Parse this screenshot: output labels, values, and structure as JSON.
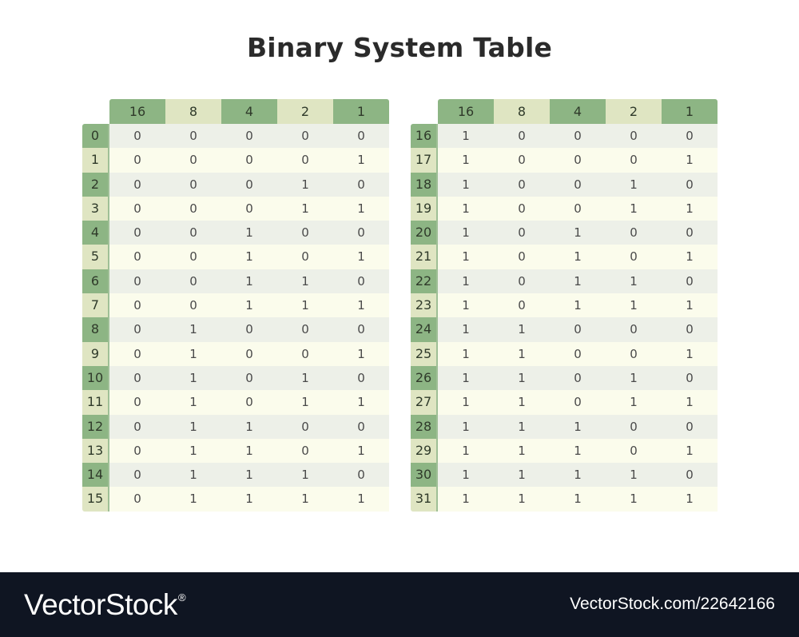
{
  "title": "Binary System Table",
  "headers": [
    "16",
    "8",
    "4",
    "2",
    "1"
  ],
  "tables": [
    {
      "rows": [
        {
          "label": "0",
          "bits": [
            "0",
            "0",
            "0",
            "0",
            "0"
          ]
        },
        {
          "label": "1",
          "bits": [
            "0",
            "0",
            "0",
            "0",
            "1"
          ]
        },
        {
          "label": "2",
          "bits": [
            "0",
            "0",
            "0",
            "1",
            "0"
          ]
        },
        {
          "label": "3",
          "bits": [
            "0",
            "0",
            "0",
            "1",
            "1"
          ]
        },
        {
          "label": "4",
          "bits": [
            "0",
            "0",
            "1",
            "0",
            "0"
          ]
        },
        {
          "label": "5",
          "bits": [
            "0",
            "0",
            "1",
            "0",
            "1"
          ]
        },
        {
          "label": "6",
          "bits": [
            "0",
            "0",
            "1",
            "1",
            "0"
          ]
        },
        {
          "label": "7",
          "bits": [
            "0",
            "0",
            "1",
            "1",
            "1"
          ]
        },
        {
          "label": "8",
          "bits": [
            "0",
            "1",
            "0",
            "0",
            "0"
          ]
        },
        {
          "label": "9",
          "bits": [
            "0",
            "1",
            "0",
            "0",
            "1"
          ]
        },
        {
          "label": "10",
          "bits": [
            "0",
            "1",
            "0",
            "1",
            "0"
          ]
        },
        {
          "label": "11",
          "bits": [
            "0",
            "1",
            "0",
            "1",
            "1"
          ]
        },
        {
          "label": "12",
          "bits": [
            "0",
            "1",
            "1",
            "0",
            "0"
          ]
        },
        {
          "label": "13",
          "bits": [
            "0",
            "1",
            "1",
            "0",
            "1"
          ]
        },
        {
          "label": "14",
          "bits": [
            "0",
            "1",
            "1",
            "1",
            "0"
          ]
        },
        {
          "label": "15",
          "bits": [
            "0",
            "1",
            "1",
            "1",
            "1"
          ]
        }
      ]
    },
    {
      "rows": [
        {
          "label": "16",
          "bits": [
            "1",
            "0",
            "0",
            "0",
            "0"
          ]
        },
        {
          "label": "17",
          "bits": [
            "1",
            "0",
            "0",
            "0",
            "1"
          ]
        },
        {
          "label": "18",
          "bits": [
            "1",
            "0",
            "0",
            "1",
            "0"
          ]
        },
        {
          "label": "19",
          "bits": [
            "1",
            "0",
            "0",
            "1",
            "1"
          ]
        },
        {
          "label": "20",
          "bits": [
            "1",
            "0",
            "1",
            "0",
            "0"
          ]
        },
        {
          "label": "21",
          "bits": [
            "1",
            "0",
            "1",
            "0",
            "1"
          ]
        },
        {
          "label": "22",
          "bits": [
            "1",
            "0",
            "1",
            "1",
            "0"
          ]
        },
        {
          "label": "23",
          "bits": [
            "1",
            "0",
            "1",
            "1",
            "1"
          ]
        },
        {
          "label": "24",
          "bits": [
            "1",
            "1",
            "0",
            "0",
            "0"
          ]
        },
        {
          "label": "25",
          "bits": [
            "1",
            "1",
            "0",
            "0",
            "1"
          ]
        },
        {
          "label": "26",
          "bits": [
            "1",
            "1",
            "0",
            "1",
            "0"
          ]
        },
        {
          "label": "27",
          "bits": [
            "1",
            "1",
            "0",
            "1",
            "1"
          ]
        },
        {
          "label": "28",
          "bits": [
            "1",
            "1",
            "1",
            "0",
            "0"
          ]
        },
        {
          "label": "29",
          "bits": [
            "1",
            "1",
            "1",
            "0",
            "1"
          ]
        },
        {
          "label": "30",
          "bits": [
            "1",
            "1",
            "1",
            "1",
            "0"
          ]
        },
        {
          "label": "31",
          "bits": [
            "1",
            "1",
            "1",
            "1",
            "1"
          ]
        }
      ]
    }
  ],
  "colors": {
    "header_dark": "#8db584",
    "header_light": "#dfe5c2",
    "row_even": "#edf0e8",
    "row_odd": "#fbfcec",
    "footer_bg": "#0f1522"
  },
  "footer": {
    "brand": "VectorStock",
    "registered": "®",
    "image_id": "VectorStock.com/22642166"
  }
}
